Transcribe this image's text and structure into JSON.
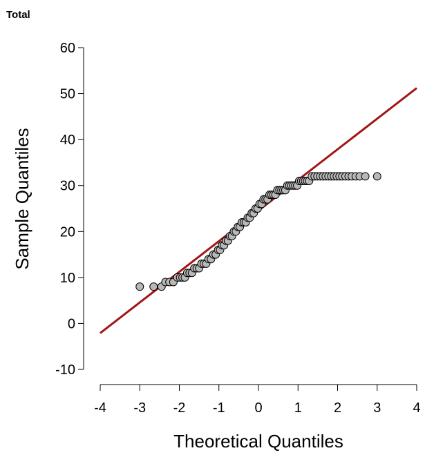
{
  "chart_data": {
    "type": "scatter",
    "title": "Total",
    "xlabel": "Theoretical Quantiles",
    "ylabel": "Sample Quantiles",
    "xlim": [
      -4,
      4
    ],
    "ylim": [
      -10,
      60
    ],
    "xticks": [
      -4,
      -3,
      -2,
      -1,
      0,
      1,
      2,
      3,
      4
    ],
    "yticks": [
      -10,
      0,
      10,
      20,
      30,
      40,
      50,
      60
    ],
    "grid": false,
    "reference_line": {
      "x": [
        -4,
        4
      ],
      "y": [
        -2.1,
        51.2
      ],
      "color": "#a31515"
    },
    "point_fill": "#b8b8b8",
    "point_stroke": "#000000",
    "points": [
      {
        "x": -3.0,
        "y": 8
      },
      {
        "x": -2.65,
        "y": 8
      },
      {
        "x": -2.45,
        "y": 8
      },
      {
        "x": -2.35,
        "y": 9
      },
      {
        "x": -2.25,
        "y": 9
      },
      {
        "x": -2.15,
        "y": 9
      },
      {
        "x": -2.05,
        "y": 10
      },
      {
        "x": -1.98,
        "y": 10
      },
      {
        "x": -1.92,
        "y": 10
      },
      {
        "x": -1.86,
        "y": 10
      },
      {
        "x": -1.8,
        "y": 11
      },
      {
        "x": -1.74,
        "y": 11
      },
      {
        "x": -1.68,
        "y": 11
      },
      {
        "x": -1.62,
        "y": 12
      },
      {
        "x": -1.56,
        "y": 12
      },
      {
        "x": -1.5,
        "y": 12
      },
      {
        "x": -1.44,
        "y": 13
      },
      {
        "x": -1.38,
        "y": 13
      },
      {
        "x": -1.32,
        "y": 13
      },
      {
        "x": -1.26,
        "y": 14
      },
      {
        "x": -1.2,
        "y": 14
      },
      {
        "x": -1.14,
        "y": 15
      },
      {
        "x": -1.08,
        "y": 15
      },
      {
        "x": -1.02,
        "y": 16
      },
      {
        "x": -0.97,
        "y": 16
      },
      {
        "x": -0.92,
        "y": 17
      },
      {
        "x": -0.87,
        "y": 17
      },
      {
        "x": -0.82,
        "y": 18
      },
      {
        "x": -0.77,
        "y": 18
      },
      {
        "x": -0.72,
        "y": 19
      },
      {
        "x": -0.67,
        "y": 19
      },
      {
        "x": -0.62,
        "y": 20
      },
      {
        "x": -0.57,
        "y": 20
      },
      {
        "x": -0.52,
        "y": 21
      },
      {
        "x": -0.47,
        "y": 21
      },
      {
        "x": -0.42,
        "y": 22
      },
      {
        "x": -0.37,
        "y": 22
      },
      {
        "x": -0.32,
        "y": 22
      },
      {
        "x": -0.27,
        "y": 23
      },
      {
        "x": -0.22,
        "y": 23
      },
      {
        "x": -0.17,
        "y": 24
      },
      {
        "x": -0.12,
        "y": 24
      },
      {
        "x": -0.07,
        "y": 25
      },
      {
        "x": -0.02,
        "y": 25
      },
      {
        "x": 0.03,
        "y": 26
      },
      {
        "x": 0.08,
        "y": 26
      },
      {
        "x": 0.13,
        "y": 27
      },
      {
        "x": 0.18,
        "y": 27
      },
      {
        "x": 0.23,
        "y": 27
      },
      {
        "x": 0.28,
        "y": 28
      },
      {
        "x": 0.33,
        "y": 28
      },
      {
        "x": 0.38,
        "y": 28
      },
      {
        "x": 0.43,
        "y": 28
      },
      {
        "x": 0.48,
        "y": 29
      },
      {
        "x": 0.53,
        "y": 29
      },
      {
        "x": 0.58,
        "y": 29
      },
      {
        "x": 0.63,
        "y": 29
      },
      {
        "x": 0.68,
        "y": 29
      },
      {
        "x": 0.73,
        "y": 30
      },
      {
        "x": 0.78,
        "y": 30
      },
      {
        "x": 0.83,
        "y": 30
      },
      {
        "x": 0.88,
        "y": 30
      },
      {
        "x": 0.93,
        "y": 30
      },
      {
        "x": 0.98,
        "y": 30
      },
      {
        "x": 1.03,
        "y": 31
      },
      {
        "x": 1.08,
        "y": 31
      },
      {
        "x": 1.13,
        "y": 31
      },
      {
        "x": 1.18,
        "y": 31
      },
      {
        "x": 1.23,
        "y": 31
      },
      {
        "x": 1.28,
        "y": 31
      },
      {
        "x": 1.35,
        "y": 32
      },
      {
        "x": 1.42,
        "y": 32
      },
      {
        "x": 1.49,
        "y": 32
      },
      {
        "x": 1.56,
        "y": 32
      },
      {
        "x": 1.63,
        "y": 32
      },
      {
        "x": 1.7,
        "y": 32
      },
      {
        "x": 1.77,
        "y": 32
      },
      {
        "x": 1.84,
        "y": 32
      },
      {
        "x": 1.91,
        "y": 32
      },
      {
        "x": 1.98,
        "y": 32
      },
      {
        "x": 2.05,
        "y": 32
      },
      {
        "x": 2.12,
        "y": 32
      },
      {
        "x": 2.2,
        "y": 32
      },
      {
        "x": 2.28,
        "y": 32
      },
      {
        "x": 2.36,
        "y": 32
      },
      {
        "x": 2.46,
        "y": 32
      },
      {
        "x": 2.56,
        "y": 32
      },
      {
        "x": 2.7,
        "y": 32
      },
      {
        "x": 3.0,
        "y": 32
      }
    ]
  }
}
